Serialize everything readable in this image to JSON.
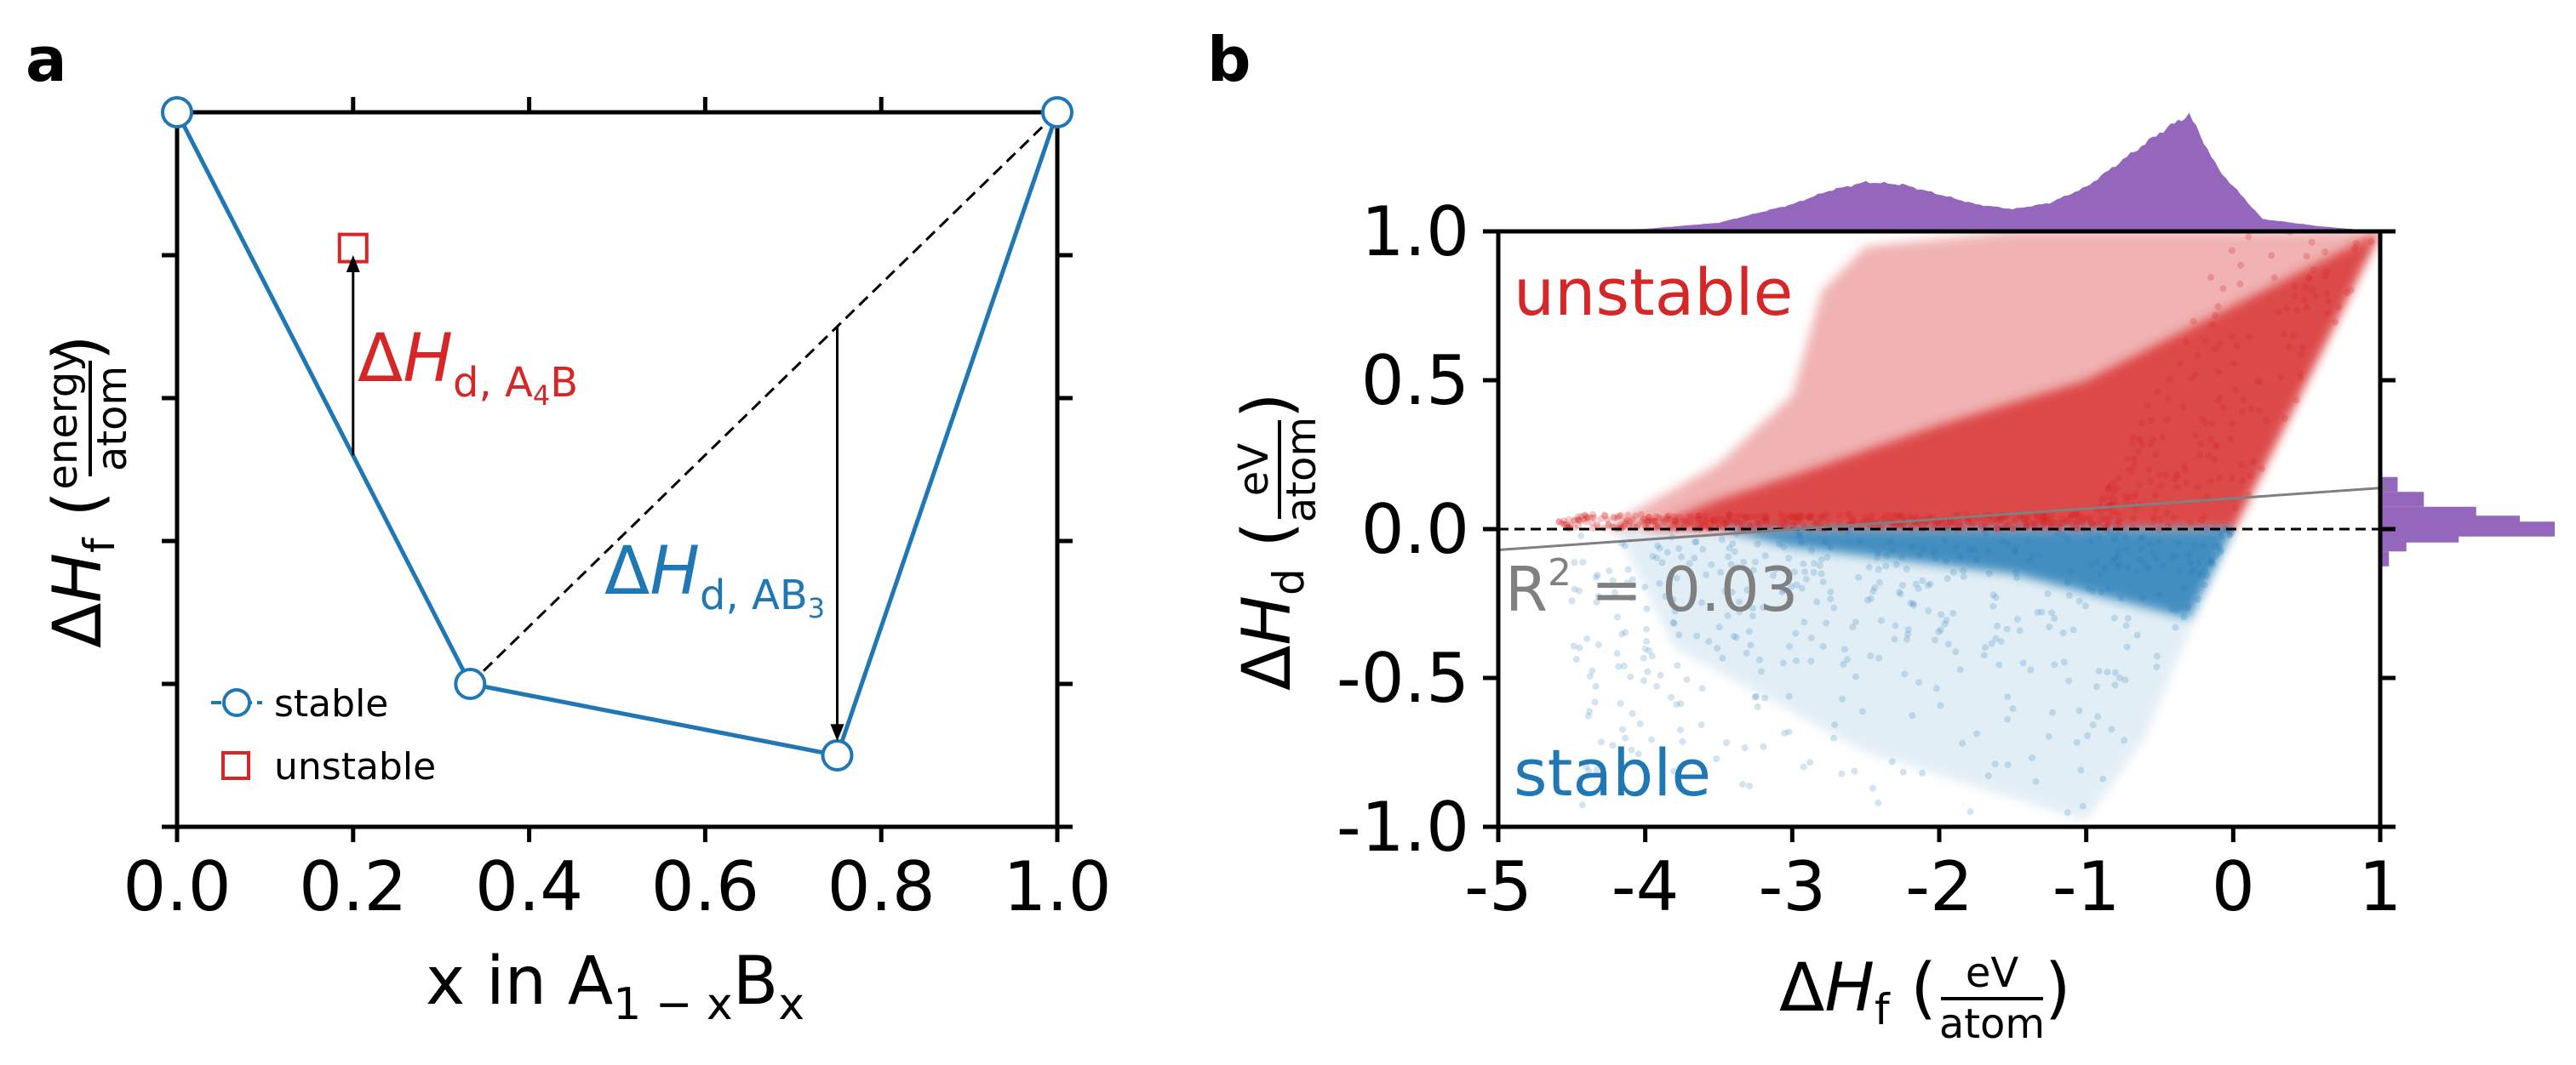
{
  "colors": {
    "stable": "#1f77b4",
    "unstable": "#d62728",
    "histogram": "#9467bd",
    "fit_line": "#808080"
  },
  "panel_a": {
    "letter": "a",
    "xlabel": {
      "main": "x in A",
      "sub1": "1 − x",
      "mid": "B",
      "sub2": "x"
    },
    "ylabel": {
      "delta": "Δ",
      "H": "H",
      "sub": "f",
      "num": "energy",
      "den": "atom"
    },
    "annotation_A4B": {
      "delta": "Δ",
      "H": "H",
      "sub": "d, A",
      "sub2": "4",
      "sub3": "B"
    },
    "annotation_AB3": {
      "delta": "Δ",
      "H": "H",
      "sub": "d, AB",
      "sub2": "3"
    },
    "legend": [
      {
        "label": "stable",
        "marker": "circle-line"
      },
      {
        "label": "unstable",
        "marker": "square"
      }
    ]
  },
  "panel_b": {
    "letter": "b",
    "xlabel": {
      "delta": "Δ",
      "H": "H",
      "sub": "f",
      "num": "eV",
      "den": "atom"
    },
    "ylabel": {
      "delta": "Δ",
      "H": "H",
      "sub": "d",
      "num": "eV",
      "den": "atom"
    },
    "label_unstable": "unstable",
    "label_stable": "stable",
    "r2_text": {
      "R": "R",
      "sup": "2",
      "rest": " = 0.03"
    }
  },
  "chart_data": [
    {
      "type": "line",
      "panel": "a",
      "xlim": [
        0.0,
        1.0
      ],
      "x_ticks": [
        "0.0",
        "0.2",
        "0.4",
        "0.6",
        "0.8",
        "1.0"
      ],
      "y_ticks": "unlabeled",
      "series": [
        {
          "name": "stable",
          "x": [
            0.0,
            0.333,
            0.75,
            1.0
          ],
          "y": [
            0.0,
            -0.8,
            -0.9,
            0.0
          ]
        },
        {
          "name": "unstable",
          "x": [
            0.2
          ],
          "y": [
            -0.19
          ]
        }
      ],
      "hull_lines": [
        {
          "style": "solid",
          "x": [
            0.0,
            0.333,
            0.75,
            1.0
          ],
          "y": [
            0.0,
            -0.8,
            -0.9,
            0.0
          ]
        },
        {
          "style": "dashed",
          "x": [
            0.333,
            1.0
          ],
          "y": [
            -0.8,
            0.0
          ]
        }
      ],
      "arrows": [
        {
          "label": "A4B",
          "x": 0.2,
          "from_y": -0.48,
          "to_y": -0.2
        },
        {
          "label": "AB3",
          "x": 0.75,
          "from_y": -0.3,
          "to_y": -0.88
        }
      ]
    },
    {
      "type": "scatter",
      "panel": "b",
      "xlim": [
        -5,
        1
      ],
      "ylim": [
        -1.0,
        1.0
      ],
      "x_ticks": [
        "-5",
        "-4",
        "-3",
        "-2",
        "-1",
        "0",
        "1"
      ],
      "y_ticks": [
        "-1.0",
        "-0.5",
        "0.0",
        "0.5",
        "1.0"
      ],
      "series": [
        {
          "name": "unstable",
          "region": "ΔHd > 0",
          "density_note": "dense cloud, upper bound ΔHd ≈ ΔHf + 0.0 up to (1,1)"
        },
        {
          "name": "stable",
          "region": "ΔHd < 0",
          "density_note": "dense near 0, lower bound ΔHd ≈ ΔHf for ΔHf > -1"
        }
      ],
      "fit_line": {
        "x": [
          -5,
          1
        ],
        "y": [
          -0.07,
          0.14
        ],
        "r2": 0.03
      },
      "reference_line": {
        "y": 0.0,
        "style": "dashed"
      },
      "top_histogram": {
        "x_centers": [
          -4.5,
          -4.0,
          -3.5,
          -3.0,
          -2.75,
          -2.5,
          -2.25,
          -2.0,
          -1.75,
          -1.5,
          -1.25,
          -1.0,
          -0.75,
          -0.5,
          -0.3,
          -0.1,
          0.2,
          0.6,
          1.0
        ],
        "relative_height": [
          0.0,
          0.02,
          0.07,
          0.22,
          0.33,
          0.4,
          0.38,
          0.3,
          0.22,
          0.18,
          0.23,
          0.36,
          0.58,
          0.8,
          0.95,
          0.5,
          0.1,
          0.04,
          0.0
        ]
      },
      "right_histogram": {
        "y_centers": [
          0.15,
          0.1,
          0.05,
          0.02,
          0.0,
          -0.02,
          -0.05,
          -0.1
        ],
        "relative_width": [
          0.1,
          0.25,
          0.55,
          0.8,
          1.0,
          0.45,
          0.15,
          0.05
        ]
      }
    }
  ]
}
